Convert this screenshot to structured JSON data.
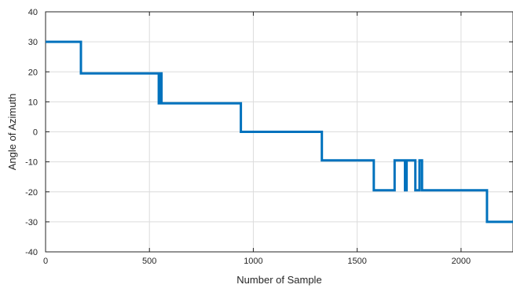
{
  "chart_data": {
    "type": "line",
    "title": "",
    "xlabel": "Number of Sample",
    "ylabel": "Angle of Azimuth",
    "xlim": [
      0,
      2250
    ],
    "ylim": [
      -40,
      40
    ],
    "xticks": [
      0,
      500,
      1000,
      1500,
      2000
    ],
    "yticks": [
      40,
      30,
      20,
      10,
      0,
      -10,
      -20,
      -30,
      -40
    ],
    "grid": true,
    "legend": "none",
    "series": [
      {
        "color": "#0072bd",
        "x": [
          0,
          170,
          170,
          545,
          545,
          552,
          552,
          558,
          558,
          940,
          940,
          1330,
          1330,
          1336,
          1336,
          1580,
          1580,
          1680,
          1680,
          1730,
          1730,
          1738,
          1738,
          1780,
          1780,
          1800,
          1800,
          1812,
          1812,
          1820,
          1820,
          2125,
          2125,
          2250
        ],
        "y": [
          30,
          30,
          19.5,
          19.5,
          9.5,
          9.5,
          19.5,
          19.5,
          9.5,
          9.5,
          0,
          0,
          -9.5,
          -9.5,
          -9.5,
          -9.5,
          -19.5,
          -19.5,
          -9.5,
          -9.5,
          -19.5,
          -19.5,
          -9.5,
          -9.5,
          -19.5,
          -19.5,
          -9.5,
          -9.5,
          -19.5,
          -19.5,
          -19.5,
          -19.5,
          -30,
          -30
        ]
      }
    ]
  }
}
